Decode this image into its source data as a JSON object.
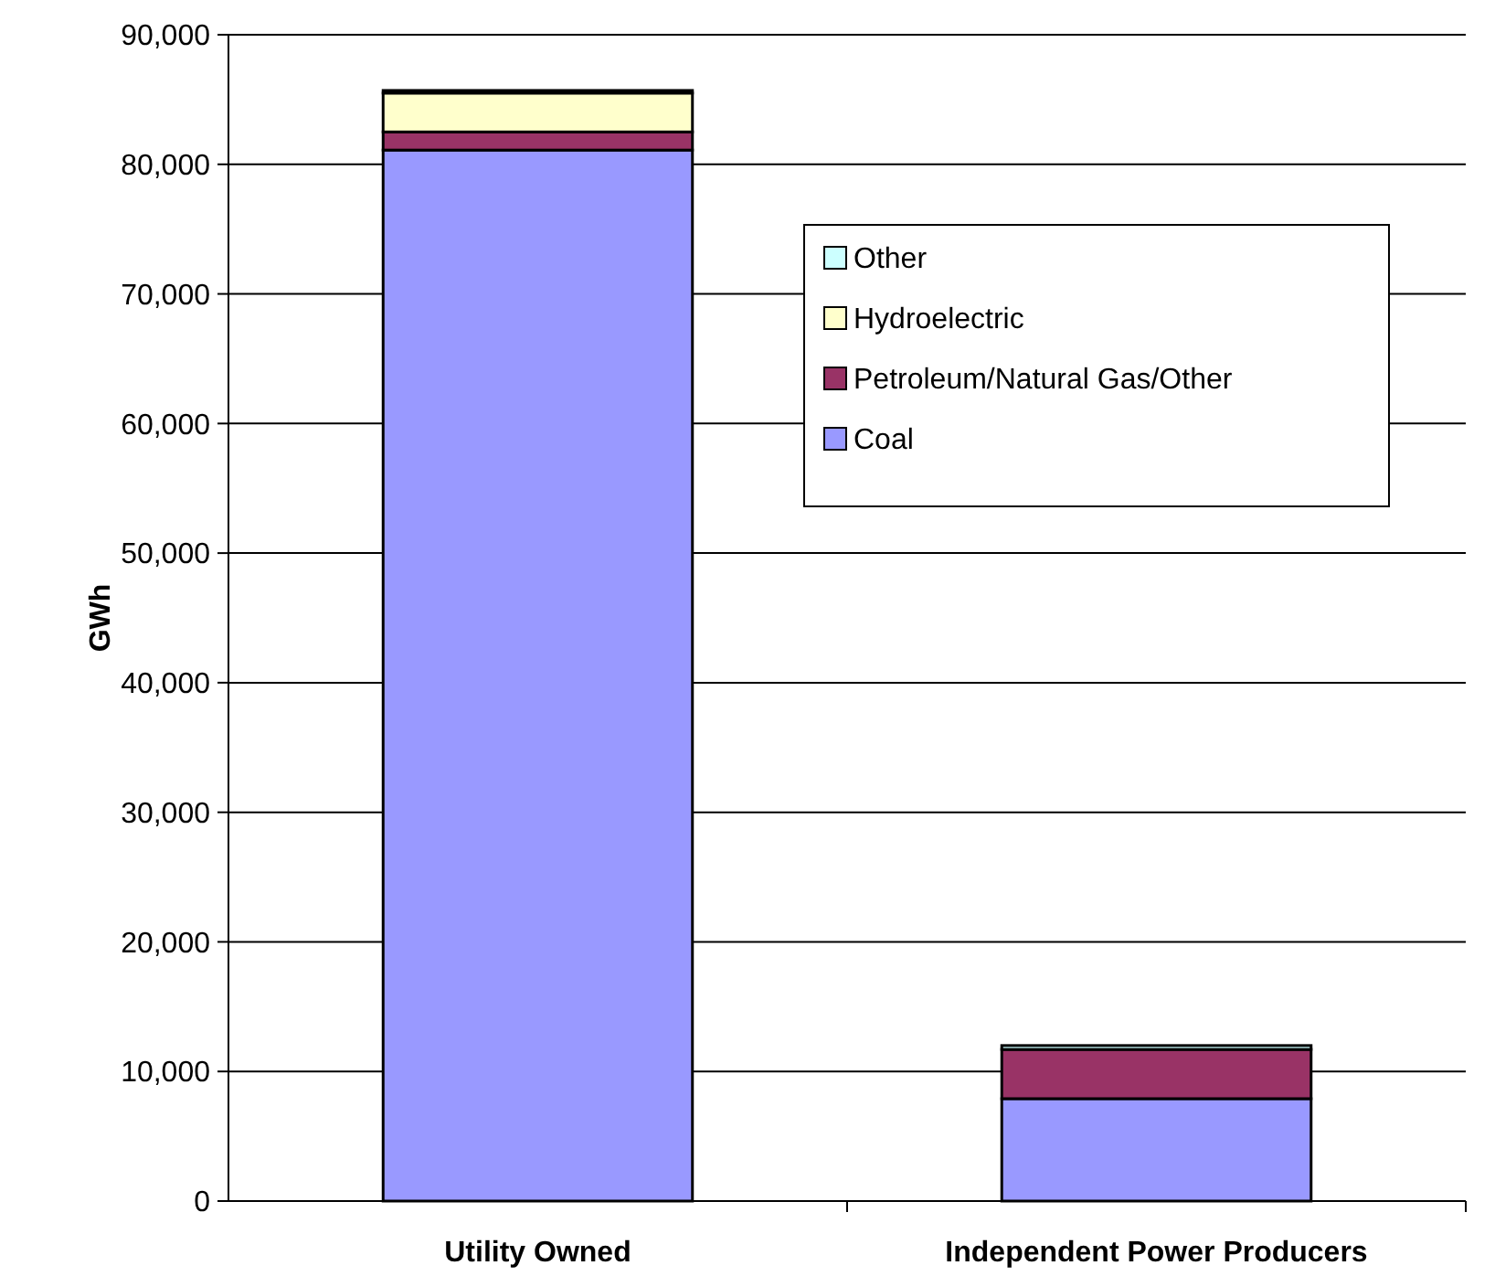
{
  "chart_data": {
    "type": "bar",
    "stacked": true,
    "ylabel": "GWh",
    "categories": [
      "Utility Owned",
      "Independent Power Producers"
    ],
    "series": [
      {
        "name": "Coal",
        "color": "#9999ff",
        "values": [
          81100,
          7900
        ]
      },
      {
        "name": "Petroleum/Natural Gas/Other",
        "color": "#993366",
        "values": [
          1400,
          3800
        ]
      },
      {
        "name": "Hydroelectric",
        "color": "#ffffcc",
        "values": [
          3000,
          null
        ]
      },
      {
        "name": "Other",
        "color": "#ccffff",
        "values": [
          200,
          300
        ]
      }
    ],
    "ylim": [
      0,
      90000
    ],
    "yticks": [
      {
        "value": 0,
        "label": "0"
      },
      {
        "value": 10000,
        "label": "10,000"
      },
      {
        "value": 20000,
        "label": "20,000"
      },
      {
        "value": 30000,
        "label": "30,000"
      },
      {
        "value": 40000,
        "label": "40,000"
      },
      {
        "value": 50000,
        "label": "50,000"
      },
      {
        "value": 60000,
        "label": "60,000"
      },
      {
        "value": 70000,
        "label": "70,000"
      },
      {
        "value": 80000,
        "label": "80,000"
      },
      {
        "value": 90000,
        "label": "90,000"
      }
    ],
    "grid": "y",
    "legend": "top right"
  }
}
